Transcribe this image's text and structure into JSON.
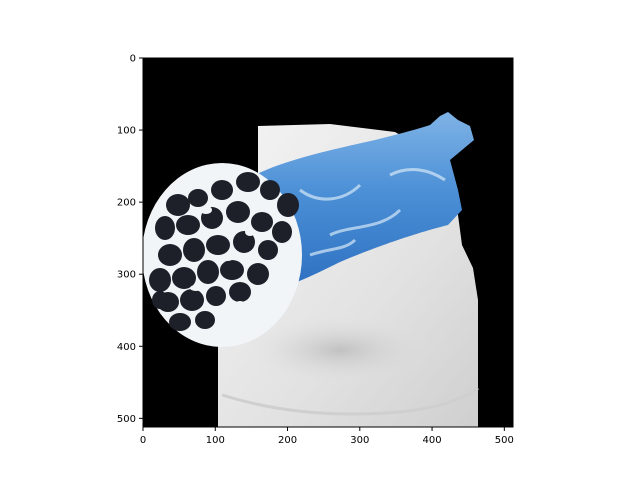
{
  "axes": {
    "x_ticks": [
      "0",
      "100",
      "200",
      "300",
      "400",
      "500"
    ],
    "y_ticks": [
      "0",
      "100",
      "200",
      "300",
      "400",
      "500"
    ],
    "x_range": [
      0,
      512
    ],
    "y_range": [
      512,
      0
    ]
  },
  "image": {
    "subject": "blue-shell cannoli filled with cream and chocolate chips on a white foam plate",
    "background_color": "#000000",
    "plate_color": "#e6e6e6",
    "shell_color": "#3f86cf",
    "cream_color": "#f2f5f8",
    "chips_color": "#1d1f29"
  }
}
